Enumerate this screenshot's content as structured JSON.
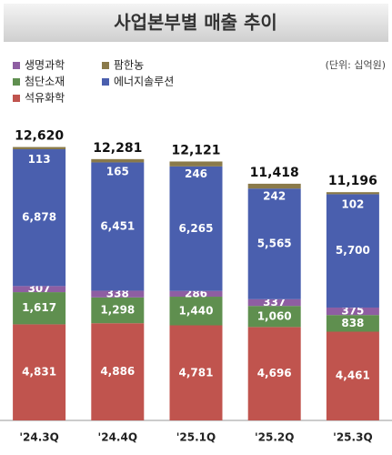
{
  "chart_data": {
    "type": "stacked_bar",
    "title": "사업본부별 매출 추이",
    "unit": "(단위: 십억원)",
    "categories": [
      "'24.3Q",
      "'24.4Q",
      "'25.1Q",
      "'25.2Q",
      "'25.3Q"
    ],
    "series": [
      {
        "name": "석유화학",
        "color": "#c0544e",
        "values": [
          4831,
          4886,
          4781,
          4696,
          4461
        ],
        "value_labels": [
          "4,831",
          "4,886",
          "4,781",
          "4,696",
          "4,461"
        ]
      },
      {
        "name": "첨단소재",
        "color": "#5f8f4f",
        "values": [
          1617,
          1298,
          1440,
          1060,
          838
        ],
        "value_labels": [
          "1,617",
          "1,298",
          "1,440",
          "1,060",
          "838"
        ]
      },
      {
        "name": "생명과학",
        "color": "#8e5ea2",
        "values": [
          307,
          338,
          286,
          337,
          375
        ]
      },
      {
        "name": "에너지솔루션",
        "color": "#4a5fae",
        "values": [
          6878,
          6451,
          6265,
          5565,
          5700
        ],
        "value_labels": [
          "6,878",
          "6,451",
          "6,265",
          "5,565",
          "5,700"
        ]
      },
      {
        "name": "팜한농",
        "color": "#8a7a4a",
        "values": [
          113,
          165,
          246,
          242,
          102
        ]
      }
    ],
    "totals": {
      "values": [
        12620,
        12281,
        12121,
        11418,
        11196
      ],
      "value_labels": [
        "12,620",
        "12,281",
        "12,121",
        "11,418",
        "11,196"
      ]
    },
    "ylim": [
      0,
      14000
    ]
  }
}
